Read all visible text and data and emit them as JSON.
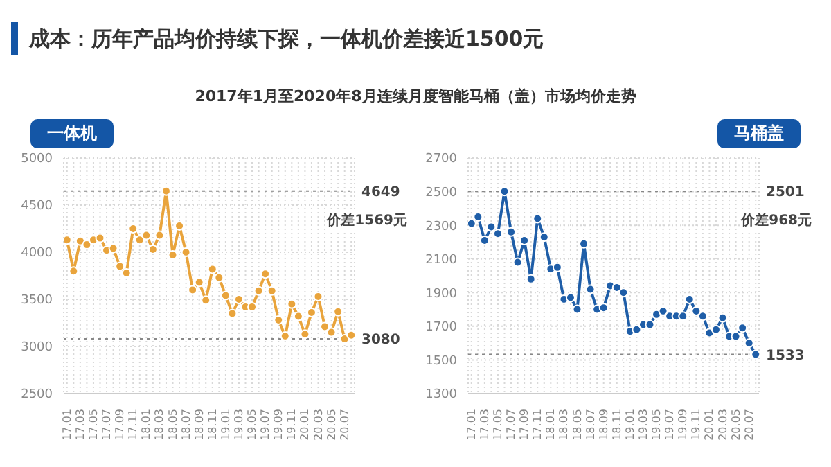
{
  "chart_data": [
    {
      "type": "line",
      "title": "一体机",
      "annotations": [
        "成本：历年产品均价持续下探，一体机价差接近1500元",
        "2017年1月至2020年8月连续月度智能马桶（盖）市场均价走势",
        "价差1569元"
      ],
      "categories": [
        "17.01",
        null,
        "17.03",
        null,
        "17.05",
        null,
        "17.07",
        null,
        "17.09",
        null,
        "17.11",
        null,
        "18.01",
        null,
        "18.03",
        null,
        "18.05",
        null,
        "18.07",
        null,
        "18.09",
        null,
        "18.11",
        null,
        "19.01",
        null,
        "19.03",
        null,
        "19.05",
        null,
        "19.07",
        null,
        "19.09",
        null,
        "19.11",
        null,
        "20.01",
        null,
        "20.03",
        null,
        "20.05",
        null,
        "20.07",
        null
      ],
      "series": [
        {
          "color": "#e9a43c",
          "values": [
            4130,
            3800,
            4120,
            4080,
            4130,
            4150,
            4020,
            4040,
            3850,
            3780,
            4250,
            4130,
            4180,
            4030,
            4180,
            4649,
            3970,
            4280,
            4000,
            3600,
            3680,
            3490,
            3820,
            3730,
            3540,
            3350,
            3500,
            3420,
            3420,
            3590,
            3770,
            3590,
            3280,
            3110,
            3450,
            3320,
            3130,
            3360,
            3530,
            3210,
            3150,
            3370,
            3080,
            3120
          ]
        }
      ],
      "ylim": [
        2500,
        5000
      ],
      "yticks": [
        2500,
        3000,
        3500,
        4000,
        4500,
        5000
      ],
      "grid": true,
      "marker": "circle",
      "line_style": "solid",
      "legend": false,
      "ref_lines": [
        {
          "axis": "y",
          "value": 4649,
          "label": "4649",
          "line_style": "dotted",
          "color": "#888888"
        },
        {
          "axis": "y",
          "value": 3080,
          "label": "3080",
          "line_style": "dotted",
          "color": "#888888"
        }
      ]
    },
    {
      "type": "line",
      "title": "马桶盖",
      "annotations": [
        "价差968元"
      ],
      "categories": [
        "17.01",
        null,
        "17.03",
        null,
        "17.05",
        null,
        "17.07",
        null,
        "17.09",
        null,
        "17.11",
        null,
        "18.01",
        null,
        "18.03",
        null,
        "18.05",
        null,
        "18.07",
        null,
        "18.09",
        null,
        "18.11",
        null,
        "19.01",
        null,
        "19.03",
        null,
        "19.05",
        null,
        "19.07",
        null,
        "19.09",
        null,
        "19.11",
        null,
        "20.01",
        null,
        "20.03",
        null,
        "20.05",
        null,
        "20.07",
        null
      ],
      "series": [
        {
          "color": "#1f5ea8",
          "values": [
            2310,
            2350,
            2210,
            2290,
            2250,
            2501,
            2260,
            2080,
            2210,
            1980,
            2340,
            2230,
            2040,
            2050,
            1860,
            1870,
            1800,
            2190,
            1920,
            1800,
            1810,
            1940,
            1930,
            1900,
            1670,
            1680,
            1710,
            1710,
            1770,
            1790,
            1760,
            1760,
            1760,
            1860,
            1790,
            1760,
            1660,
            1680,
            1750,
            1640,
            1640,
            1690,
            1600,
            1533
          ]
        }
      ],
      "ylim": [
        1300,
        2700
      ],
      "yticks": [
        1300,
        1500,
        1700,
        1900,
        2100,
        2300,
        2500,
        2700
      ],
      "grid": true,
      "marker": "circle",
      "line_style": "solid",
      "legend": false,
      "ref_lines": [
        {
          "axis": "y",
          "value": 2501,
          "label": "2501",
          "line_style": "dotted",
          "color": "#888888"
        },
        {
          "axis": "y",
          "value": 1533,
          "label": "1533",
          "line_style": "dotted",
          "color": "#888888"
        }
      ]
    }
  ]
}
